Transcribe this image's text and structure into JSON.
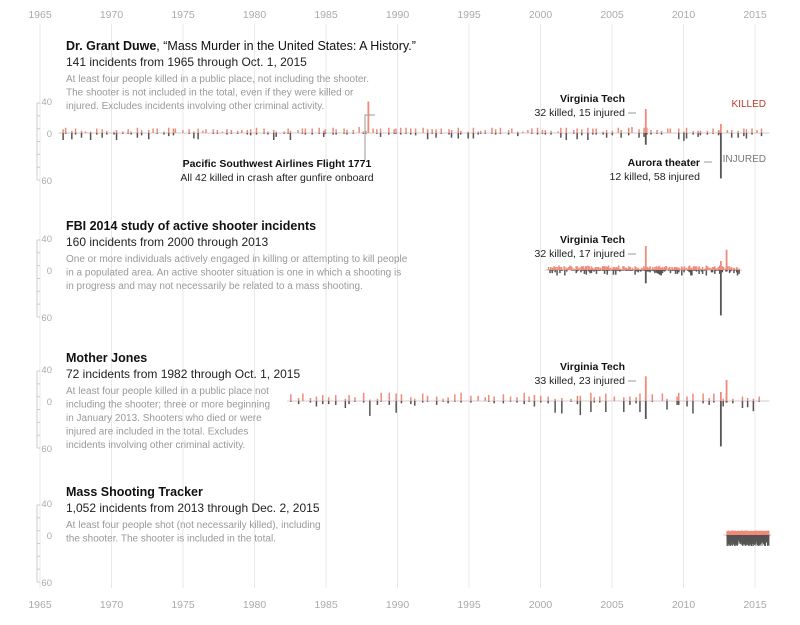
{
  "chart_data": {
    "type": "bar",
    "x_axis": {
      "ticks": [
        "1965",
        "1970",
        "1975",
        "1980",
        "1985",
        "1990",
        "1995",
        "2000",
        "2005",
        "2010",
        "2015"
      ],
      "range": [
        1965,
        2016
      ]
    },
    "y_axis": {
      "killed_ticks": [
        "40",
        "0"
      ],
      "injured_ticks": [
        "60"
      ],
      "killed_max": 40,
      "injured_max": 60
    },
    "legend": {
      "killed": "KILLED",
      "injured": "INJURED"
    },
    "colors": {
      "killed": "#f08a7a",
      "injured": "#555555",
      "killed_label": "#c0392b",
      "injured_label": "#777777",
      "baseline": "#cccccc",
      "grid": "#e8e8e8"
    },
    "panels": [
      {
        "title_bold": "Dr. Grant Duwe",
        "title_rest": ", “Mass Murder in the United States: A History.”",
        "subtitle": "141 incidents from 1965 through Oct. 1, 2015",
        "description": [
          "At least four people killed in a public place, not including the shooter.",
          "The shooter is not included in the total, even if they were killed or",
          "injured. Excludes incidents involving other criminal activity."
        ],
        "start_year": 1966.5,
        "end_year": 2015.8,
        "n_events": 141,
        "typical_killed": 4,
        "typical_injured": 4,
        "annotations": [
          {
            "title": "Virginia Tech",
            "text": "32 killed, 15 injured",
            "year": 2007.3,
            "killed": 32,
            "injured": 15
          },
          {
            "title": "Pacific Southwest Airlines Flight 1771",
            "text": "All 42 killed in crash after gunfire onboard",
            "year": 1987.9,
            "killed": 42,
            "injured": 0
          },
          {
            "title": "Aurora theater",
            "text": "12 killed, 58 injured",
            "year": 2012.55,
            "killed": 12,
            "injured": 58
          }
        ]
      },
      {
        "title_bold": "FBI 2014 study of active shooter incidents",
        "title_rest": "",
        "subtitle": "160 incidents from 2000 through 2013",
        "description": [
          "One or more individuals actively engaged in killing or attempting to kill people",
          "in a populated area. An active shooter situation is one in which a shooting is",
          "in progress and may not necessarily be related to a mass shooting."
        ],
        "start_year": 2000.5,
        "end_year": 2013.9,
        "n_events": 160,
        "typical_killed": 3,
        "typical_injured": 3,
        "annotations": [
          {
            "title": "Virginia Tech",
            "text": "32 killed, 17 injured",
            "year": 2007.3,
            "killed": 32,
            "injured": 17
          },
          {
            "title": "",
            "text": "",
            "year": 2012.55,
            "killed": 12,
            "injured": 58
          },
          {
            "title": "",
            "text": "",
            "year": 2012.95,
            "killed": 27,
            "injured": 2
          }
        ]
      },
      {
        "title_bold": "Mother Jones",
        "title_rest": "",
        "subtitle": "72 incidents from 1982 through Oct. 1, 2015",
        "description": [
          "At least four people killed in a public place not",
          "including the shooter; three or more beginning",
          "in January 2013. Shooters who died or were",
          "injured are included in the total. Excludes",
          "incidents involving other criminal activity."
        ],
        "start_year": 1982.5,
        "end_year": 2015.8,
        "n_events": 72,
        "typical_killed": 6,
        "typical_injured": 8,
        "annotations": [
          {
            "title": "Virginia Tech",
            "text": "33 killed, 23 injured",
            "year": 2007.3,
            "killed": 33,
            "injured": 23
          },
          {
            "title": "",
            "text": "",
            "year": 2012.55,
            "killed": 12,
            "injured": 58
          },
          {
            "title": "",
            "text": "",
            "year": 2012.95,
            "killed": 28,
            "injured": 2
          }
        ]
      },
      {
        "title_bold": "Mass Shooting Tracker",
        "title_rest": "",
        "subtitle": "1,052 incidents from 2013 through Dec. 2, 2015",
        "description": [
          "At least four people shot (not necessarily killed), including",
          "the shooter. The shooter is included in the total."
        ],
        "start_year": 2013.0,
        "end_year": 2015.95,
        "n_events": 1052,
        "typical_killed": 3,
        "typical_injured": 6,
        "annotations": []
      }
    ]
  }
}
